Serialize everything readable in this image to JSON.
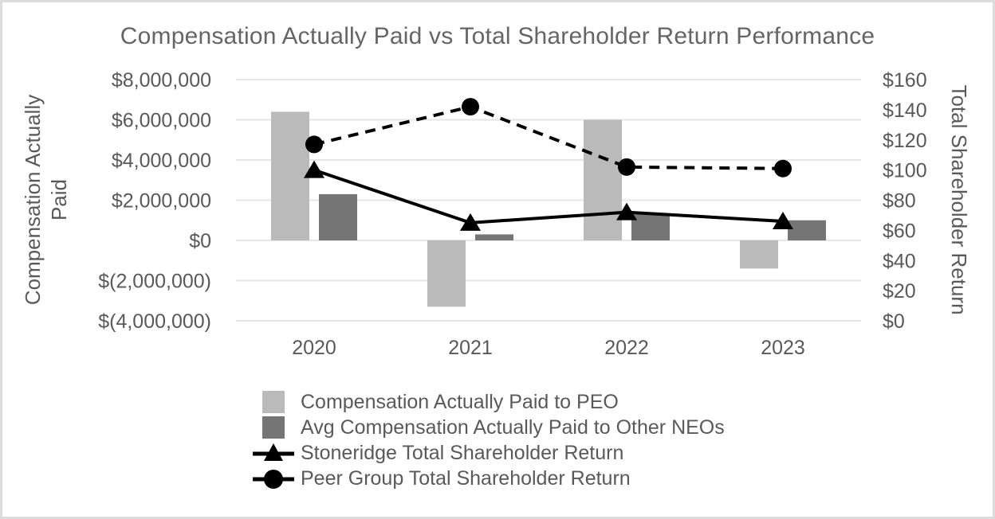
{
  "chart_data": {
    "type": "combo-bar-line",
    "title": "Compensation Actually Paid vs Total Shareholder Return Performance",
    "categories": [
      "2020",
      "2021",
      "2022",
      "2023"
    ],
    "series": [
      {
        "name": "Compensation Actually Paid to PEO",
        "type": "bar",
        "axis": "left",
        "color": "#bababa",
        "values": [
          6400000,
          -3300000,
          6000000,
          -1400000
        ]
      },
      {
        "name": "Avg Compensation Actually Paid to Other NEOs",
        "type": "bar",
        "axis": "left",
        "color": "#757575",
        "values": [
          2300000,
          300000,
          1300000,
          1000000
        ]
      },
      {
        "name": "Stoneridge Total Shareholder Return",
        "type": "line",
        "axis": "right",
        "color": "#000000",
        "line_style": "solid",
        "marker": "triangle",
        "values": [
          100,
          65,
          72,
          66
        ]
      },
      {
        "name": "Peer Group Total Shareholder Return",
        "type": "line",
        "axis": "right",
        "color": "#000000",
        "line_style": "dashed",
        "marker": "circle",
        "values": [
          117,
          142,
          102,
          101
        ]
      }
    ],
    "left_axis": {
      "label": "Compensation Actually\nPaid",
      "min": -4000000,
      "max": 8000000,
      "step": 2000000,
      "tick_labels": [
        "$8,000,000",
        "$6,000,000",
        "$4,000,000",
        "$2,000,000",
        "$0",
        "$(2,000,000)",
        "$(4,000,000)"
      ],
      "tick_values": [
        8000000,
        6000000,
        4000000,
        2000000,
        0,
        -2000000,
        -4000000
      ]
    },
    "right_axis": {
      "label": "Total Shareholder Return",
      "min": 0,
      "max": 160,
      "step": 20,
      "tick_labels": [
        "$160",
        "$140",
        "$120",
        "$100",
        "$80",
        "$60",
        "$40",
        "$20",
        "$0"
      ],
      "tick_values": [
        160,
        140,
        120,
        100,
        80,
        60,
        40,
        20,
        0
      ]
    },
    "grid": "horizontal",
    "legend_position": "bottom",
    "colors": {
      "text": "#595959",
      "title": "#656565",
      "gridline": "#e6e6e6",
      "bar_peo": "#bababa",
      "bar_neo": "#757575",
      "line": "#000000"
    }
  }
}
